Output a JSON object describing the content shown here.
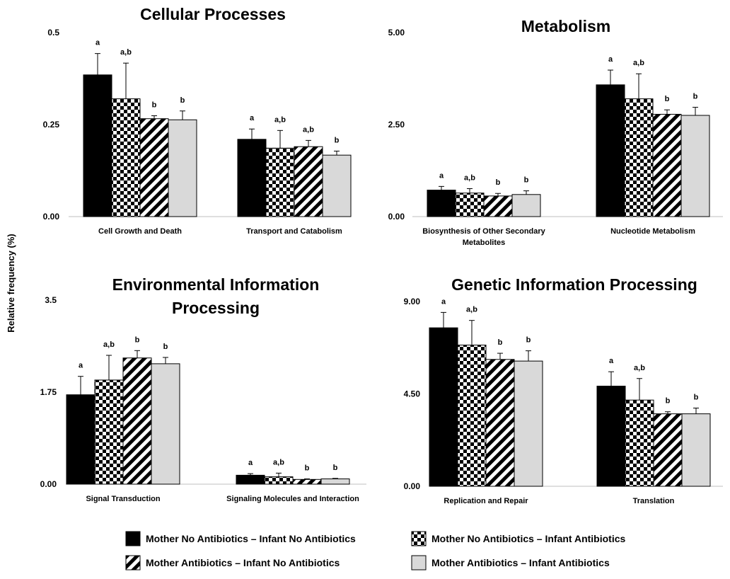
{
  "y_axis_label": "Relative frequency (%)",
  "series_styles": [
    {
      "fill": "#000000",
      "pattern": "solid"
    },
    {
      "fill": "#000000",
      "pattern": "checker"
    },
    {
      "fill": "#000000",
      "pattern": "diagonal"
    },
    {
      "fill": "#d9d9d9",
      "pattern": "solid"
    }
  ],
  "legend": [
    "Mother No Antibiotics – Infant No Antibiotics",
    "Mother No Antibiotics – Infant Antibiotics",
    "Mother Antibiotics – Infant No Antibiotics",
    "Mother Antibiotics – Infant Antibiotics"
  ],
  "chart_data": [
    {
      "type": "bar",
      "title": "Cellular Processes",
      "title_lines": [
        "Cellular Processes"
      ],
      "categories": [
        "Cell Growth and Death",
        "Transport and Catabolism"
      ],
      "category_lines": [
        [
          "Cell Growth and Death"
        ],
        [
          "Transport and Catabolism"
        ]
      ],
      "ylim": [
        0,
        0.5
      ],
      "yticks": [
        "0.00",
        "0.25",
        "0.5"
      ],
      "tick_values": [
        0,
        0.25,
        0.5
      ],
      "series": [
        {
          "name": "Mother No Antibiotics – Infant No Antibiotics",
          "values": [
            0.385,
            0.21
          ],
          "errors": [
            0.058,
            0.028
          ],
          "labels": [
            "a",
            "a"
          ]
        },
        {
          "name": "Mother No Antibiotics – Infant Antibiotics",
          "values": [
            0.32,
            0.186
          ],
          "errors": [
            0.097,
            0.048
          ],
          "labels": [
            "a,b",
            "a,b"
          ]
        },
        {
          "name": "Mother Antibiotics – Infant No Antibiotics",
          "values": [
            0.266,
            0.19
          ],
          "errors": [
            0.008,
            0.017
          ],
          "labels": [
            "b",
            "a,b"
          ]
        },
        {
          "name": "Mother Antibiotics – Infant Antibiotics",
          "values": [
            0.263,
            0.167
          ],
          "errors": [
            0.024,
            0.011
          ],
          "labels": [
            "b",
            "b"
          ]
        }
      ]
    },
    {
      "type": "bar",
      "title": "Metabolism",
      "title_lines": [
        "Metabolism"
      ],
      "categories": [
        "Biosynthesis of Other Secondary Metabolites",
        "Nucleotide Metabolism"
      ],
      "category_lines": [
        [
          "Biosynthesis of Other Secondary",
          "Metabolites"
        ],
        [
          "Nucleotide Metabolism"
        ]
      ],
      "ylim": [
        0,
        5.0
      ],
      "yticks": [
        "0.00",
        "2.50",
        "5.00"
      ],
      "tick_values": [
        0,
        2.5,
        5.0
      ],
      "series": [
        {
          "name": "Mother No Antibiotics – Infant No Antibiotics",
          "values": [
            0.72,
            3.58
          ],
          "errors": [
            0.1,
            0.4
          ],
          "labels": [
            "a",
            "a"
          ]
        },
        {
          "name": "Mother No Antibiotics – Infant Antibiotics",
          "values": [
            0.64,
            3.2
          ],
          "errors": [
            0.12,
            0.68
          ],
          "labels": [
            "a,b",
            "a,b"
          ]
        },
        {
          "name": "Mother Antibiotics – Infant No Antibiotics",
          "values": [
            0.56,
            2.78
          ],
          "errors": [
            0.07,
            0.12
          ],
          "labels": [
            "b",
            "b"
          ]
        },
        {
          "name": "Mother Antibiotics – Infant Antibiotics",
          "values": [
            0.6,
            2.75
          ],
          "errors": [
            0.1,
            0.22
          ],
          "labels": [
            "b",
            "b"
          ]
        }
      ]
    },
    {
      "type": "bar",
      "title": "Environmental Information Processing",
      "title_lines": [
        "Environmental Information",
        "Processing"
      ],
      "categories": [
        "Signal Transduction",
        "Signaling Molecules and Interaction"
      ],
      "category_lines": [
        [
          "Signal Transduction"
        ],
        [
          "Signaling Molecules and Interaction"
        ]
      ],
      "ylim": [
        0,
        3.5
      ],
      "yticks": [
        "0.00",
        "1.75",
        "3.5"
      ],
      "tick_values": [
        0,
        1.75,
        3.5
      ],
      "series": [
        {
          "name": "Mother No Antibiotics – Infant No Antibiotics",
          "values": [
            1.7,
            0.17
          ],
          "errors": [
            0.35,
            0.03
          ],
          "labels": [
            "a",
            "a"
          ]
        },
        {
          "name": "Mother No Antibiotics – Infant Antibiotics",
          "values": [
            1.98,
            0.14
          ],
          "errors": [
            0.47,
            0.07
          ],
          "labels": [
            "a,b",
            "a,b"
          ]
        },
        {
          "name": "Mother Antibiotics – Infant No Antibiotics",
          "values": [
            2.4,
            0.09
          ],
          "errors": [
            0.14,
            0.01
          ],
          "labels": [
            "b",
            "b"
          ]
        },
        {
          "name": "Mother Antibiotics – Infant Antibiotics",
          "values": [
            2.29,
            0.1
          ],
          "errors": [
            0.12,
            0.01
          ],
          "labels": [
            "b",
            "b"
          ]
        }
      ]
    },
    {
      "type": "bar",
      "title": "Genetic Information Processing",
      "title_lines": [
        "Genetic Information Processing"
      ],
      "categories": [
        "Replication and Repair",
        "Translation"
      ],
      "category_lines": [
        [
          "Replication and Repair"
        ],
        [
          "Translation"
        ]
      ],
      "ylim": [
        0,
        9.0
      ],
      "yticks": [
        "0.00",
        "4.50",
        "9.00"
      ],
      "tick_values": [
        0,
        4.5,
        9.0
      ],
      "series": [
        {
          "name": "Mother No Antibiotics – Infant No Antibiotics",
          "values": [
            7.72,
            4.88
          ],
          "errors": [
            0.75,
            0.7
          ],
          "labels": [
            "a",
            "a"
          ]
        },
        {
          "name": "Mother No Antibiotics – Infant Antibiotics",
          "values": [
            6.88,
            4.2
          ],
          "errors": [
            1.2,
            1.05
          ],
          "labels": [
            "a,b",
            "a,b"
          ]
        },
        {
          "name": "Mother Antibiotics – Infant No Antibiotics",
          "values": [
            6.18,
            3.53
          ],
          "errors": [
            0.3,
            0.1
          ],
          "labels": [
            "b",
            "b"
          ]
        },
        {
          "name": "Mother Antibiotics – Infant Antibiotics",
          "values": [
            6.1,
            3.53
          ],
          "errors": [
            0.5,
            0.28
          ],
          "labels": [
            "b",
            "b"
          ]
        }
      ]
    }
  ]
}
